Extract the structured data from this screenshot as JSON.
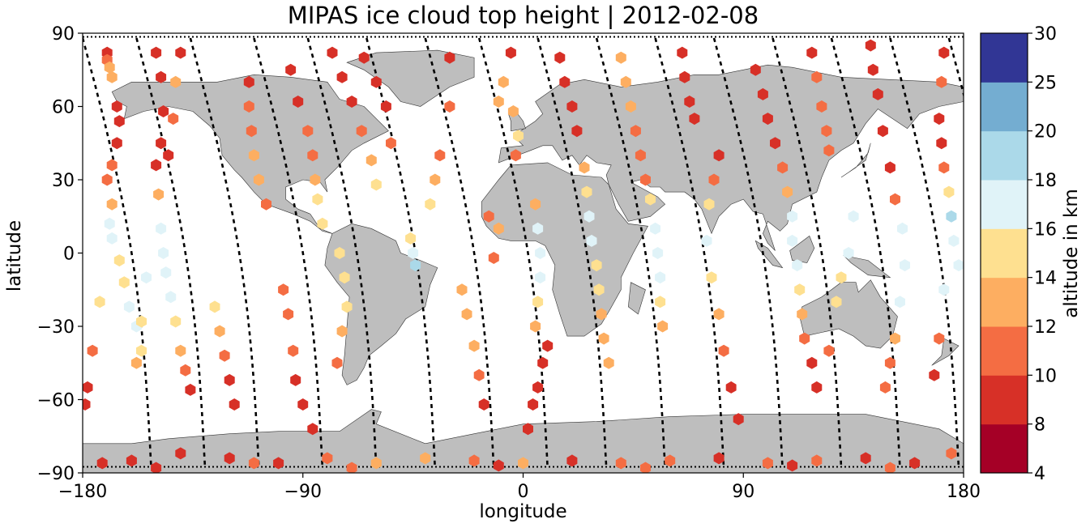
{
  "title": "MIPAS ice cloud top height | 2012-02-08",
  "xlabel": "longitude",
  "ylabel": "latitude",
  "colorbar_label": "altitude in km",
  "colors": {
    "land": "#bebebe",
    "coast": "#333333",
    "track": "#000000",
    "frame": "#000000"
  },
  "chart_data": {
    "type": "scatter",
    "title": "MIPAS ice cloud top height | 2012-02-08",
    "xlabel": "longitude",
    "ylabel": "latitude",
    "xlim": [
      -180,
      180
    ],
    "ylim": [
      -90,
      90
    ],
    "xticks": [
      -180,
      -90,
      0,
      90,
      180
    ],
    "yticks": [
      -90,
      -60,
      -30,
      0,
      30,
      60,
      90
    ],
    "xtick_labels": [
      "−180",
      "−90",
      "0",
      "90",
      "180"
    ],
    "ytick_labels": [
      "−90",
      "−60",
      "−30",
      "0",
      "30",
      "60",
      "90"
    ],
    "colorbar": {
      "label": "altitude in km",
      "boundaries": [
        4,
        8,
        10,
        12,
        14,
        16,
        18,
        20,
        25,
        30
      ],
      "tick_labels": [
        "4",
        "8",
        "10",
        "12",
        "14",
        "16",
        "18",
        "20",
        "25",
        "30"
      ],
      "colors": [
        "#a50026",
        "#d73027",
        "#f46d43",
        "#fdae61",
        "#fee090",
        "#e0f3f8",
        "#abd9e9",
        "#74add1",
        "#313695"
      ]
    },
    "marker": "hexagon",
    "orbit_tracks": [
      {
        "lon0": -178,
        "lat": [
          90,
          -90
        ],
        "lon": [
          -180,
          -145
        ]
      },
      {
        "lon0": -153,
        "lat": [
          90,
          -90
        ],
        "lon": [
          -155,
          -120
        ]
      },
      {
        "lon0": -128,
        "lat": [
          90,
          -90
        ],
        "lon": [
          -130,
          -95
        ]
      }
    ],
    "series": [
      {
        "name": "",
        "points": [
          [
            -170,
            82,
            8
          ],
          [
            -170,
            79,
            10
          ],
          [
            -169,
            76,
            12
          ],
          [
            -168,
            72,
            12
          ],
          [
            -166,
            60,
            8
          ],
          [
            -165,
            54,
            8
          ],
          [
            -166,
            45,
            8
          ],
          [
            -168,
            36,
            10
          ],
          [
            -170,
            30,
            10
          ],
          [
            -168,
            20,
            12
          ],
          [
            -169,
            12,
            16
          ],
          [
            -168,
            6,
            16
          ],
          [
            -165,
            -3,
            15
          ],
          [
            -163,
            -12,
            15
          ],
          [
            -161,
            -22,
            16
          ],
          [
            -158,
            -30,
            16
          ],
          [
            -156,
            -40,
            14
          ],
          [
            -173,
            -20,
            15
          ],
          [
            -176,
            -40,
            10
          ],
          [
            -178,
            -55,
            8
          ],
          [
            -179,
            -62,
            8
          ],
          [
            -150,
            82,
            8
          ],
          [
            -148,
            72,
            8
          ],
          [
            -147,
            58,
            8
          ],
          [
            -148,
            45,
            8
          ],
          [
            -150,
            36,
            8
          ],
          [
            -149,
            24,
            12
          ],
          [
            -148,
            10,
            16
          ],
          [
            -147,
            0,
            16
          ],
          [
            -146,
            -8,
            17
          ],
          [
            -144,
            -18,
            16
          ],
          [
            -142,
            -28,
            14
          ],
          [
            -140,
            -40,
            12
          ],
          [
            -138,
            -48,
            10
          ],
          [
            -136,
            -56,
            8
          ],
          [
            -154,
            -10,
            16
          ],
          [
            -156,
            -28,
            15
          ],
          [
            -158,
            -45,
            12
          ],
          [
            -140,
            82,
            8
          ],
          [
            -142,
            70,
            12
          ],
          [
            -143,
            55,
            10
          ],
          [
            -145,
            40,
            8
          ],
          [
            -112,
            70,
            8
          ],
          [
            -112,
            60,
            10
          ],
          [
            -111,
            50,
            10
          ],
          [
            -110,
            40,
            12
          ],
          [
            -108,
            30,
            12
          ],
          [
            -105,
            20,
            10
          ],
          [
            -126,
            -22,
            14
          ],
          [
            -124,
            -32,
            12
          ],
          [
            -122,
            -42,
            10
          ],
          [
            -120,
            -52,
            8
          ],
          [
            -118,
            -62,
            8
          ],
          [
            -95,
            75,
            8
          ],
          [
            -92,
            62,
            8
          ],
          [
            -88,
            50,
            10
          ],
          [
            -86,
            40,
            10
          ],
          [
            -85,
            30,
            12
          ],
          [
            -84,
            22,
            14
          ],
          [
            -82,
            12,
            14
          ],
          [
            -98,
            -15,
            10
          ],
          [
            -96,
            -25,
            10
          ],
          [
            -94,
            -40,
            10
          ],
          [
            -93,
            -52,
            8
          ],
          [
            -90,
            -62,
            8
          ],
          [
            -86,
            -72,
            8
          ],
          [
            -78,
            82,
            8
          ],
          [
            -74,
            72,
            8
          ],
          [
            -70,
            62,
            8
          ],
          [
            -66,
            50,
            10
          ],
          [
            -62,
            38,
            12
          ],
          [
            -60,
            28,
            14
          ],
          [
            -75,
            0,
            15
          ],
          [
            -73,
            -10,
            14
          ],
          [
            -72,
            -22,
            14
          ],
          [
            -74,
            -32,
            12
          ],
          [
            -76,
            -45,
            10
          ],
          [
            -65,
            80,
            8
          ],
          [
            -60,
            70,
            8
          ],
          [
            -56,
            60,
            8
          ],
          [
            -54,
            45,
            10
          ],
          [
            -45,
            0,
            17
          ],
          [
            -44,
            -5,
            18
          ],
          [
            -46,
            6,
            15
          ],
          [
            -38,
            20,
            14
          ],
          [
            -36,
            30,
            12
          ],
          [
            -34,
            40,
            10
          ],
          [
            -30,
            60,
            10
          ],
          [
            -30,
            80,
            8
          ],
          [
            -25,
            -15,
            12
          ],
          [
            -23,
            -25,
            12
          ],
          [
            -20,
            -38,
            12
          ],
          [
            -18,
            -50,
            10
          ],
          [
            -16,
            -62,
            8
          ],
          [
            -10,
            62,
            12
          ],
          [
            -8,
            70,
            12
          ],
          [
            -5,
            82,
            8
          ],
          [
            -4,
            58,
            12
          ],
          [
            -2,
            48,
            14
          ],
          [
            -3,
            40,
            10
          ],
          [
            -10,
            10,
            12
          ],
          [
            -12,
            -2,
            10
          ],
          [
            -14,
            15,
            10
          ],
          [
            10,
            -38,
            8
          ],
          [
            8,
            -45,
            8
          ],
          [
            6,
            -55,
            8
          ],
          [
            4,
            -62,
            8
          ],
          [
            2,
            -72,
            8
          ],
          [
            15,
            80,
            8
          ],
          [
            17,
            70,
            8
          ],
          [
            20,
            60,
            8
          ],
          [
            22,
            50,
            8
          ],
          [
            25,
            35,
            12
          ],
          [
            26,
            25,
            14
          ],
          [
            27,
            15,
            16
          ],
          [
            28,
            5,
            16
          ],
          [
            30,
            -5,
            15
          ],
          [
            31,
            -15,
            14
          ],
          [
            32,
            -25,
            12
          ],
          [
            33,
            -35,
            12
          ],
          [
            35,
            -45,
            12
          ],
          [
            5,
            20,
            12
          ],
          [
            6,
            10,
            16
          ],
          [
            7,
            0,
            16
          ],
          [
            7,
            -10,
            16
          ],
          [
            6,
            -20,
            14
          ],
          [
            5,
            -30,
            12
          ],
          [
            40,
            80,
            12
          ],
          [
            42,
            70,
            12
          ],
          [
            44,
            60,
            12
          ],
          [
            46,
            50,
            10
          ],
          [
            48,
            40,
            10
          ],
          [
            50,
            30,
            10
          ],
          [
            52,
            22,
            14
          ],
          [
            54,
            10,
            16
          ],
          [
            55,
            0,
            16
          ],
          [
            56,
            -10,
            16
          ],
          [
            56,
            -20,
            14
          ],
          [
            57,
            -30,
            12
          ],
          [
            65,
            82,
            8
          ],
          [
            66,
            72,
            8
          ],
          [
            68,
            62,
            8
          ],
          [
            70,
            55,
            8
          ],
          [
            80,
            40,
            8
          ],
          [
            78,
            30,
            10
          ],
          [
            76,
            20,
            14
          ],
          [
            75,
            5,
            16
          ],
          [
            77,
            -10,
            15
          ],
          [
            80,
            -25,
            12
          ],
          [
            82,
            -40,
            10
          ],
          [
            85,
            -55,
            8
          ],
          [
            88,
            -68,
            8
          ],
          [
            95,
            75,
            8
          ],
          [
            98,
            65,
            8
          ],
          [
            100,
            55,
            8
          ],
          [
            103,
            45,
            8
          ],
          [
            106,
            35,
            10
          ],
          [
            108,
            25,
            12
          ],
          [
            110,
            15,
            16
          ],
          [
            110,
            5,
            16
          ],
          [
            112,
            -5,
            16
          ],
          [
            113,
            -15,
            15
          ],
          [
            114,
            -25,
            12
          ],
          [
            115,
            -35,
            10
          ],
          [
            118,
            -45,
            8
          ],
          [
            120,
            -55,
            8
          ],
          [
            118,
            82,
            8
          ],
          [
            120,
            72,
            10
          ],
          [
            122,
            60,
            10
          ],
          [
            124,
            50,
            10
          ],
          [
            125,
            42,
            10
          ],
          [
            135,
            15,
            16
          ],
          [
            133,
            0,
            16
          ],
          [
            130,
            -10,
            15
          ],
          [
            128,
            -20,
            14
          ],
          [
            125,
            -40,
            10
          ],
          [
            142,
            85,
            8
          ],
          [
            143,
            75,
            8
          ],
          [
            145,
            65,
            8
          ],
          [
            147,
            50,
            8
          ],
          [
            150,
            35,
            8
          ],
          [
            152,
            22,
            10
          ],
          [
            155,
            10,
            17
          ],
          [
            156,
            -5,
            16
          ],
          [
            154,
            -20,
            17
          ],
          [
            152,
            -35,
            12
          ],
          [
            150,
            -45,
            10
          ],
          [
            148,
            -55,
            10
          ],
          [
            172,
            82,
            8
          ],
          [
            171,
            70,
            10
          ],
          [
            170,
            55,
            8
          ],
          [
            171,
            45,
            8
          ],
          [
            172,
            35,
            10
          ],
          [
            174,
            25,
            14
          ],
          [
            175,
            15,
            18
          ],
          [
            176,
            5,
            17
          ],
          [
            178,
            -5,
            16
          ],
          [
            172,
            -15,
            16
          ],
          [
            170,
            -35,
            10
          ],
          [
            168,
            -50,
            8
          ],
          [
            -160,
            -85,
            8
          ],
          [
            -140,
            -82,
            8
          ],
          [
            -120,
            -84,
            8
          ],
          [
            -100,
            -86,
            8
          ],
          [
            -80,
            -84,
            10
          ],
          [
            -60,
            -86,
            12
          ],
          [
            -40,
            -84,
            12
          ],
          [
            -20,
            -85,
            10
          ],
          [
            0,
            -86,
            12
          ],
          [
            20,
            -85,
            8
          ],
          [
            40,
            -86,
            10
          ],
          [
            60,
            -85,
            10
          ],
          [
            80,
            -84,
            8
          ],
          [
            100,
            -86,
            10
          ],
          [
            120,
            -85,
            10
          ],
          [
            140,
            -84,
            8
          ],
          [
            160,
            -86,
            8
          ],
          [
            175,
            -82,
            10
          ],
          [
            -172,
            -86,
            8
          ],
          [
            -150,
            -88,
            8
          ],
          [
            -110,
            -86,
            10
          ],
          [
            -70,
            -88,
            10
          ],
          [
            -10,
            -87,
            8
          ],
          [
            50,
            -88,
            10
          ],
          [
            110,
            -87,
            8
          ],
          [
            150,
            -88,
            10
          ]
        ]
      }
    ]
  }
}
